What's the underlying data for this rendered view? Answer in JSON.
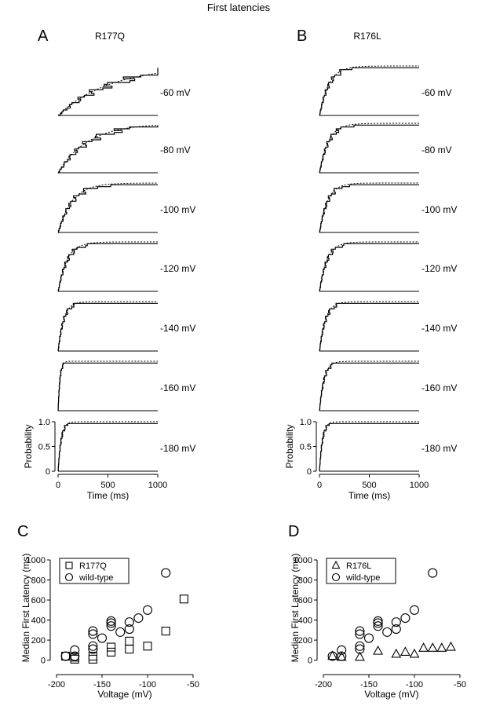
{
  "figure_title": "First latencies",
  "panels": {
    "A": {
      "letter": "A",
      "title": "R177Q"
    },
    "B": {
      "letter": "B",
      "title": "R176L"
    },
    "C": {
      "letter": "C"
    },
    "D": {
      "letter": "D"
    }
  },
  "traces": {
    "voltages": [
      "-60 mV",
      "-80 mV",
      "-100 mV",
      "-120 mV",
      "-140 mV",
      "-160 mV",
      "-180 mV"
    ],
    "ylabel": "Probability",
    "xlabel": "Time (ms)",
    "yticks": [
      "0",
      "0.5",
      "1.0"
    ],
    "xticks": [
      "0",
      "500",
      "1000"
    ],
    "tau_ms_A": [
      520,
      300,
      140,
      90,
      55,
      18,
      30
    ],
    "tau_ms_B": [
      95,
      90,
      80,
      75,
      60,
      45,
      30
    ]
  },
  "chart_data": [
    {
      "type": "scatter",
      "panel": "C",
      "xlabel": "Voltage (mV)",
      "ylabel": "Median First Latency (ms)",
      "xlim": [
        -200,
        -50
      ],
      "ylim": [
        -50,
        1000
      ],
      "xticks": [
        "-200",
        "-150",
        "-100",
        "-50"
      ],
      "yticks": [
        "0",
        "200",
        "400",
        "600",
        "800",
        "1000"
      ],
      "series": [
        {
          "name": "R177Q",
          "marker": "square",
          "x": [
            -190,
            -180,
            -180,
            -160,
            -160,
            -140,
            -140,
            -120,
            -120,
            -100,
            -80,
            -60
          ],
          "y": [
            40,
            30,
            10,
            40,
            10,
            130,
            80,
            190,
            110,
            140,
            290,
            610
          ]
        },
        {
          "name": "wild-type",
          "marker": "circle",
          "x": [
            -190,
            -180,
            -180,
            -160,
            -160,
            -160,
            -160,
            -150,
            -140,
            -140,
            -140,
            -130,
            -120,
            -120,
            -110,
            -100,
            -80
          ],
          "y": [
            40,
            100,
            40,
            290,
            260,
            140,
            110,
            220,
            390,
            370,
            340,
            280,
            380,
            310,
            420,
            500,
            870
          ]
        }
      ]
    },
    {
      "type": "scatter",
      "panel": "D",
      "xlabel": "Voltage (mV)",
      "ylabel": "Median First Latency (ms)",
      "xlim": [
        -200,
        -50
      ],
      "ylim": [
        -50,
        1000
      ],
      "xticks": [
        "-200",
        "-150",
        "-100",
        "-50"
      ],
      "yticks": [
        "0",
        "200",
        "400",
        "600",
        "800",
        "1000"
      ],
      "series": [
        {
          "name": "R176L",
          "marker": "triangle",
          "x": [
            -190,
            -180,
            -160,
            -140,
            -120,
            -110,
            -100,
            -90,
            -80,
            -70,
            -60
          ],
          "y": [
            40,
            30,
            30,
            90,
            60,
            80,
            60,
            120,
            120,
            120,
            130
          ]
        },
        {
          "name": "wild-type",
          "marker": "circle",
          "x": [
            -190,
            -180,
            -180,
            -160,
            -160,
            -160,
            -160,
            -150,
            -140,
            -140,
            -140,
            -130,
            -120,
            -120,
            -110,
            -100,
            -80
          ],
          "y": [
            40,
            100,
            40,
            290,
            260,
            140,
            110,
            220,
            390,
            370,
            340,
            280,
            380,
            310,
            420,
            500,
            870
          ]
        }
      ]
    }
  ]
}
